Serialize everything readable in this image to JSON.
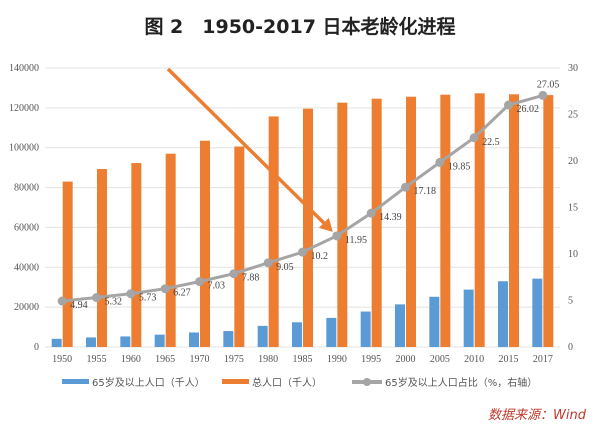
{
  "chart_data": {
    "type": "bar+line",
    "title": "图 2　1950-2017 日本老龄化进程",
    "categories": [
      "1950",
      "1955",
      "1960",
      "1965",
      "1970",
      "1975",
      "1980",
      "1985",
      "1990",
      "1995",
      "2000",
      "2005",
      "2010",
      "2015",
      "2017"
    ],
    "series": [
      {
        "name": "65岁及以上人口（千人）",
        "type": "bar",
        "axis": "left",
        "color": "#5b9bd5",
        "values": [
          4100,
          4800,
          5300,
          6200,
          7300,
          8000,
          10600,
          12400,
          14600,
          17800,
          21400,
          25200,
          28800,
          33000,
          34300
        ]
      },
      {
        "name": "总人口（千人）",
        "type": "bar",
        "axis": "left",
        "color": "#ed7d31",
        "values": [
          83000,
          89300,
          92300,
          97000,
          103500,
          100600,
          115700,
          119600,
          122600,
          124600,
          125600,
          126600,
          127300,
          126800,
          126400
        ]
      },
      {
        "name": "65岁及以上人口占比（%，右轴）",
        "type": "line",
        "axis": "right",
        "color": "#a5a5a5",
        "values": [
          4.94,
          5.32,
          5.73,
          6.27,
          7.03,
          7.88,
          9.05,
          10.2,
          11.95,
          14.39,
          17.18,
          19.85,
          22.5,
          26.02,
          27.05
        ],
        "labels": [
          "4.94",
          "5.32",
          "5.73",
          "6.27",
          "7.03",
          "7.88",
          "9.05",
          "10.2",
          "11.95",
          "14.39",
          "17.18",
          "19.85",
          "22.5",
          "26.02",
          "27.05"
        ]
      }
    ],
    "y_left": {
      "range": [
        0,
        140000
      ],
      "ticks": [
        "0",
        "20000",
        "40000",
        "60000",
        "80000",
        "100000",
        "120000",
        "140000"
      ]
    },
    "y_right": {
      "range": [
        0,
        30
      ],
      "ticks": [
        "0",
        "5",
        "10",
        "15",
        "20",
        "25",
        "30"
      ]
    },
    "grid": true,
    "legend_position": "bottom",
    "annotation": {
      "type": "arrow",
      "color": "#ed7d31",
      "points_to": "1990"
    }
  },
  "source": "数据来源：Wind",
  "source_color": "#c0392b"
}
